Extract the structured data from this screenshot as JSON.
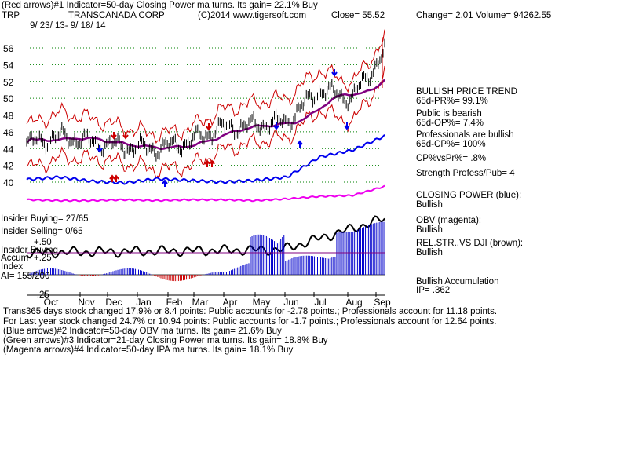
{
  "header": {
    "line1": "(Red arrows)#1 Indicator=50-day Closing Power ma turns. Its gain= 22.1% Buy",
    "ticker": "TRP",
    "company": "TRANSCANADA CORP",
    "copyright": "(C)2014 www.tigersoft.com",
    "close": "Close=  55.52",
    "change": "Change= 2.01",
    "volume": "Volume= 94262.55",
    "daterange": "9/ 23/ 13- 9/ 18/ 14"
  },
  "price_axis": {
    "ticks": [
      "56",
      "54",
      "52",
      "50",
      "48",
      "46",
      "44",
      "42",
      "40"
    ]
  },
  "months": [
    "Oct",
    "Nov",
    "Dec",
    "Jan",
    "Feb",
    "Mar",
    "Apr",
    "May",
    "Jun",
    "Jul",
    "Aug",
    "Sep"
  ],
  "left_labels": {
    "insider_buying": "Insider Buying= 27/65",
    "insider_selling": "Insider Selling= 0/65",
    "insider_buying2": "Insider Buying",
    "accum": "Accum",
    "index": "Index",
    "ai": "AI= 155/200",
    "p50": "+.50",
    "p25": "+.25",
    "m25": "-.25"
  },
  "sidebar": {
    "trend_title": "BULLISH PRICE TREND",
    "pr": "65d-PR%= 99.1%",
    "public_title": "Public is bearish",
    "op": "65d-OP%= 7.4%",
    "pros_title": "Professionals are bullish",
    "cp": "65d-CP%= 100%",
    "cpvspr": "CP%vsPr%=  .8%",
    "strength": "Strength Profess/Pub= 4",
    "closing_title": "CLOSING POWER (blue):",
    "closing_val": "Bullish",
    "obv_title": "OBV (magenta):",
    "obv_val": "Bullish",
    "relstr_title": "REL.STR..VS DJI (brown):",
    "relstr_val": "Bullish",
    "accum_title": "Bullish Accumulation",
    "ip": "IP= .362"
  },
  "footer": {
    "line1": "Trans365 days stock changed  17.9% or  8.4 points:  Public accounts for -2.78 points.;  Professionals account for  11.18 points.",
    "line2": "For Last year stock changed  24.7% or  10.94 points:  Public accounts for -1.7 points.;  Professionals account for  12.64 points.",
    "line3": "(Blue arrows)#2 Indicator=50-day OBV ma turns. Its gain= 21.6% Buy",
    "line4": "(Green arrows)#3 Indicator=21-day Closing Power ma turns. Its gain= 18.8% Buy",
    "line5": "(Magenta arrows)#4 Indicator=50-day IPA ma turns. Its gain= 18.1% Buy"
  },
  "colors": {
    "price": "#000000",
    "band": "#cc0000",
    "ma": "#800080",
    "closing_power": "#0000ee",
    "obv": "#ee00ee",
    "relstr": "#000000",
    "accum_pos": "#0000cc",
    "accum_neg": "#cc0000",
    "grid": "#008000"
  },
  "chart_data": {
    "type": "line",
    "title": "TRANSCANADA CORP",
    "ylim": [
      39.5,
      57
    ],
    "x": [
      "Oct",
      "Nov",
      "Dec",
      "Jan",
      "Feb",
      "Mar",
      "Apr",
      "May",
      "Jun",
      "Jul",
      "Aug",
      "Sep"
    ],
    "series": [
      {
        "name": "price",
        "values": [
          44.5,
          45.5,
          44.8,
          44.2,
          44.0,
          44.8,
          46.5,
          46.8,
          47.2,
          51.0,
          50.0,
          55.5
        ]
      },
      {
        "name": "CLOSING POWER (blue)",
        "values": [
          40.3,
          40.6,
          40.1,
          39.9,
          40.4,
          40.2,
          40.0,
          40.2,
          40.6,
          43.0,
          43.8,
          45.5
        ]
      },
      {
        "name": "OBV (magenta)",
        "values": [
          37.9,
          37.8,
          37.8,
          37.9,
          37.8,
          37.9,
          37.9,
          37.8,
          38.0,
          38.3,
          38.4,
          39.5
        ]
      }
    ],
    "arrows": {
      "red_down": [
        "Nov",
        "Dec",
        "Mar"
      ],
      "red_up": [
        "Dec",
        "Mar"
      ],
      "blue_down": [
        "Nov",
        "May",
        "Jul",
        "Aug"
      ],
      "blue_up": [
        "Jan",
        "Jun"
      ]
    }
  }
}
